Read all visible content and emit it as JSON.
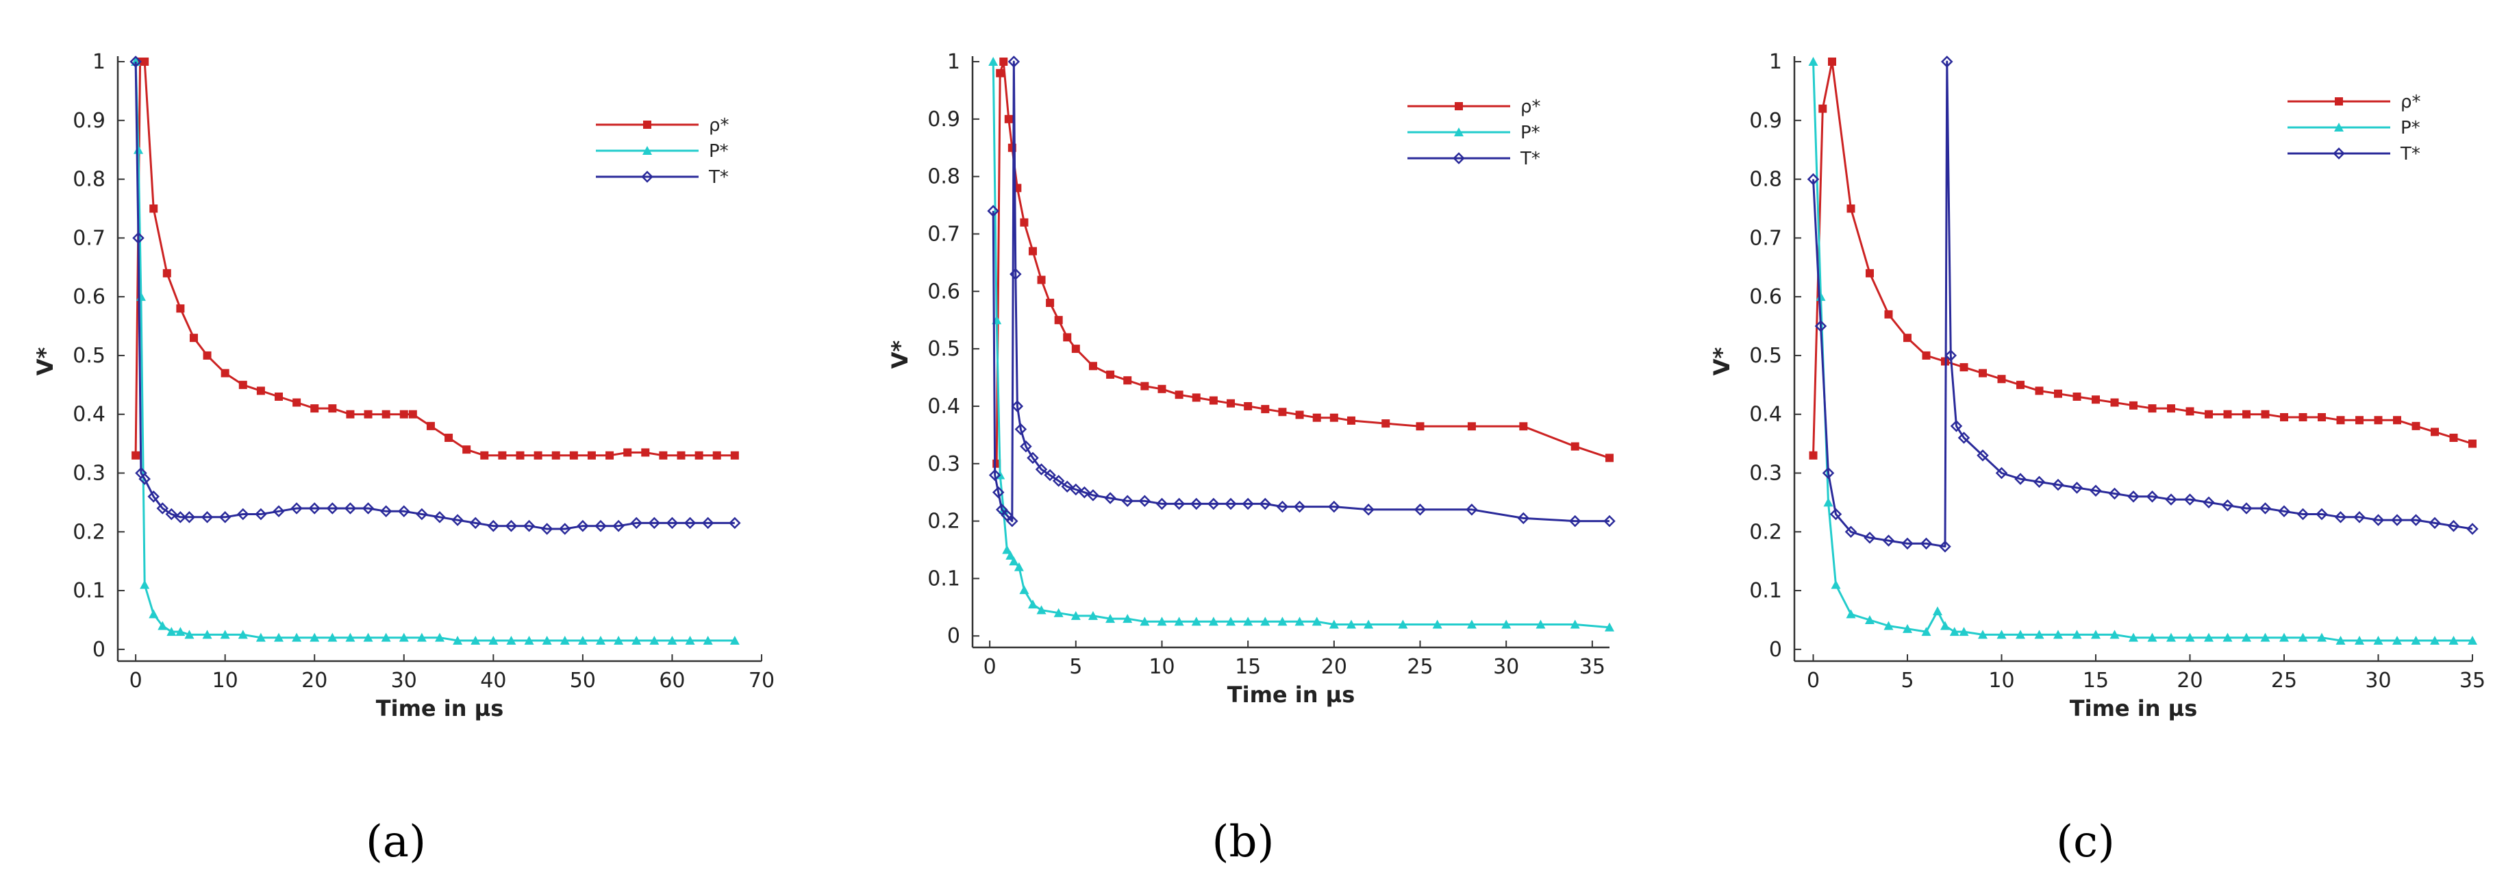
{
  "chart_data": [
    {
      "type": "line",
      "panel_label": "(a)",
      "xlabel": "Time in µs",
      "ylabel": "V*",
      "xlim": [
        -2,
        70
      ],
      "ylim": [
        -0.02,
        1.0
      ],
      "xticks": [
        "0",
        "10",
        "20",
        "30",
        "40",
        "50",
        "60",
        "70"
      ],
      "yticks": [
        "0",
        "0.1",
        "0.2",
        "0.3",
        "0.4",
        "0.5",
        "0.6",
        "0.7",
        "0.8",
        "0.9",
        "1"
      ],
      "legend_position": "top-right",
      "grid": false,
      "series": [
        {
          "name": "ρ*",
          "color": "#cc2222",
          "marker": "square",
          "x": [
            0,
            0.5,
            1,
            2,
            3.5,
            5,
            6.5,
            8,
            10,
            12,
            14,
            16,
            18,
            20,
            22,
            24,
            26,
            28,
            30,
            31,
            33,
            35,
            37,
            39,
            41,
            43,
            45,
            47,
            49,
            51,
            53,
            55,
            57,
            59,
            61,
            63,
            65,
            67
          ],
          "y": [
            0.33,
            1.0,
            1.0,
            0.75,
            0.64,
            0.58,
            0.53,
            0.5,
            0.47,
            0.45,
            0.44,
            0.43,
            0.42,
            0.41,
            0.41,
            0.4,
            0.4,
            0.4,
            0.4,
            0.4,
            0.38,
            0.36,
            0.34,
            0.33,
            0.33,
            0.33,
            0.33,
            0.33,
            0.33,
            0.33,
            0.33,
            0.335,
            0.335,
            0.33,
            0.33,
            0.33,
            0.33,
            0.33
          ]
        },
        {
          "name": "P*",
          "color": "#22cccc",
          "marker": "triangle",
          "x": [
            0,
            0.3,
            0.6,
            1,
            2,
            3,
            4,
            5,
            6,
            8,
            10,
            12,
            14,
            16,
            18,
            20,
            22,
            24,
            26,
            28,
            30,
            32,
            34,
            36,
            38,
            40,
            42,
            44,
            46,
            48,
            50,
            52,
            54,
            56,
            58,
            60,
            62,
            64,
            67
          ],
          "y": [
            1.0,
            0.85,
            0.6,
            0.11,
            0.06,
            0.04,
            0.03,
            0.03,
            0.025,
            0.025,
            0.025,
            0.025,
            0.02,
            0.02,
            0.02,
            0.02,
            0.02,
            0.02,
            0.02,
            0.02,
            0.02,
            0.02,
            0.02,
            0.015,
            0.015,
            0.015,
            0.015,
            0.015,
            0.015,
            0.015,
            0.015,
            0.015,
            0.015,
            0.015,
            0.015,
            0.015,
            0.015,
            0.015,
            0.015
          ]
        },
        {
          "name": "T*",
          "color": "#2a2a9a",
          "marker": "diamond",
          "x": [
            0,
            0.3,
            0.6,
            1,
            2,
            3,
            4,
            5,
            6,
            8,
            10,
            12,
            14,
            16,
            18,
            20,
            22,
            24,
            26,
            28,
            30,
            32,
            34,
            36,
            38,
            40,
            42,
            44,
            46,
            48,
            50,
            52,
            54,
            56,
            58,
            60,
            62,
            64,
            67
          ],
          "y": [
            1.0,
            0.7,
            0.3,
            0.29,
            0.26,
            0.24,
            0.23,
            0.225,
            0.225,
            0.225,
            0.225,
            0.23,
            0.23,
            0.235,
            0.24,
            0.24,
            0.24,
            0.24,
            0.24,
            0.235,
            0.235,
            0.23,
            0.225,
            0.22,
            0.215,
            0.21,
            0.21,
            0.21,
            0.205,
            0.205,
            0.21,
            0.21,
            0.21,
            0.215,
            0.215,
            0.215,
            0.215,
            0.215,
            0.215
          ]
        }
      ]
    },
    {
      "type": "line",
      "panel_label": "(b)",
      "xlabel": "Time in µs",
      "ylabel": "V*",
      "xlim": [
        -1,
        36
      ],
      "ylim": [
        -0.02,
        1.0
      ],
      "xticks": [
        "0",
        "5",
        "10",
        "15",
        "20",
        "25",
        "30",
        "35"
      ],
      "yticks": [
        "0",
        "0.1",
        "0.2",
        "0.3",
        "0.4",
        "0.5",
        "0.6",
        "0.7",
        "0.8",
        "0.9",
        "1"
      ],
      "legend_position": "top-right",
      "grid": false,
      "series": [
        {
          "name": "ρ*",
          "color": "#cc2222",
          "marker": "square",
          "x": [
            0.4,
            0.6,
            0.8,
            1.1,
            1.3,
            1.6,
            2,
            2.5,
            3,
            3.5,
            4,
            4.5,
            5,
            6,
            7,
            8,
            9,
            10,
            11,
            12,
            13,
            14,
            15,
            16,
            17,
            18,
            19,
            20,
            21,
            23,
            25,
            28,
            31,
            34,
            36
          ],
          "y": [
            0.3,
            0.98,
            1.0,
            0.9,
            0.85,
            0.78,
            0.72,
            0.67,
            0.62,
            0.58,
            0.55,
            0.52,
            0.5,
            0.47,
            0.455,
            0.445,
            0.435,
            0.43,
            0.42,
            0.415,
            0.41,
            0.405,
            0.4,
            0.395,
            0.39,
            0.385,
            0.38,
            0.38,
            0.375,
            0.37,
            0.365,
            0.365,
            0.365,
            0.33,
            0.31
          ]
        },
        {
          "name": "P*",
          "color": "#22cccc",
          "marker": "triangle",
          "x": [
            0.2,
            0.4,
            0.6,
            0.8,
            1.0,
            1.2,
            1.4,
            1.7,
            2,
            2.5,
            3,
            4,
            5,
            6,
            7,
            8,
            9,
            10,
            11,
            12,
            13,
            14,
            15,
            16,
            17,
            18,
            19,
            20,
            21,
            22,
            24,
            26,
            28,
            30,
            32,
            34,
            36
          ],
          "y": [
            1.0,
            0.55,
            0.28,
            0.22,
            0.15,
            0.14,
            0.13,
            0.12,
            0.08,
            0.055,
            0.045,
            0.04,
            0.035,
            0.035,
            0.03,
            0.03,
            0.025,
            0.025,
            0.025,
            0.025,
            0.025,
            0.025,
            0.025,
            0.025,
            0.025,
            0.025,
            0.025,
            0.02,
            0.02,
            0.02,
            0.02,
            0.02,
            0.02,
            0.02,
            0.02,
            0.02,
            0.015
          ]
        },
        {
          "name": "T*",
          "color": "#2a2a9a",
          "marker": "diamond",
          "x": [
            0.2,
            0.3,
            0.5,
            0.7,
            1.0,
            1.3,
            1.4,
            1.5,
            1.6,
            1.8,
            2.1,
            2.5,
            3,
            3.5,
            4,
            4.5,
            5,
            5.5,
            6,
            7,
            8,
            9,
            10,
            11,
            12,
            13,
            14,
            15,
            16,
            17,
            18,
            20,
            22,
            25,
            28,
            31,
            34,
            36
          ],
          "y": [
            0.74,
            0.28,
            0.25,
            0.22,
            0.21,
            0.2,
            1.0,
            0.63,
            0.4,
            0.36,
            0.33,
            0.31,
            0.29,
            0.28,
            0.27,
            0.26,
            0.255,
            0.25,
            0.245,
            0.24,
            0.235,
            0.235,
            0.23,
            0.23,
            0.23,
            0.23,
            0.23,
            0.23,
            0.23,
            0.225,
            0.225,
            0.225,
            0.22,
            0.22,
            0.22,
            0.205,
            0.2,
            0.2
          ]
        }
      ]
    },
    {
      "type": "line",
      "panel_label": "(c)",
      "xlabel": "Time in µs",
      "ylabel": "V*",
      "xlim": [
        -1,
        35
      ],
      "ylim": [
        -0.02,
        1.0
      ],
      "xticks": [
        "0",
        "5",
        "10",
        "15",
        "20",
        "25",
        "30",
        "35"
      ],
      "yticks": [
        "0",
        "0.1",
        "0.2",
        "0.3",
        "0.4",
        "0.5",
        "0.6",
        "0.7",
        "0.8",
        "0.9",
        "1"
      ],
      "legend_position": "top-right",
      "grid": false,
      "series": [
        {
          "name": "ρ*",
          "color": "#cc2222",
          "marker": "square",
          "x": [
            0,
            0.5,
            1,
            2,
            3,
            4,
            5,
            6,
            7,
            8,
            9,
            10,
            11,
            12,
            13,
            14,
            15,
            16,
            17,
            18,
            19,
            20,
            21,
            22,
            23,
            24,
            25,
            26,
            27,
            28,
            29,
            30,
            31,
            32,
            33,
            34,
            35
          ],
          "y": [
            0.33,
            0.92,
            1.0,
            0.75,
            0.64,
            0.57,
            0.53,
            0.5,
            0.49,
            0.48,
            0.47,
            0.46,
            0.45,
            0.44,
            0.435,
            0.43,
            0.425,
            0.42,
            0.415,
            0.41,
            0.41,
            0.405,
            0.4,
            0.4,
            0.4,
            0.4,
            0.395,
            0.395,
            0.395,
            0.39,
            0.39,
            0.39,
            0.39,
            0.38,
            0.37,
            0.36,
            0.35
          ]
        },
        {
          "name": "P*",
          "color": "#22cccc",
          "marker": "triangle",
          "x": [
            0,
            0.4,
            0.8,
            1.2,
            2,
            3,
            4,
            5,
            6,
            6.6,
            7,
            7.5,
            8,
            9,
            10,
            11,
            12,
            13,
            14,
            15,
            16,
            17,
            18,
            19,
            20,
            21,
            22,
            23,
            24,
            25,
            26,
            27,
            28,
            29,
            30,
            31,
            32,
            33,
            34,
            35
          ],
          "y": [
            1.0,
            0.6,
            0.25,
            0.11,
            0.06,
            0.05,
            0.04,
            0.035,
            0.03,
            0.065,
            0.04,
            0.03,
            0.03,
            0.025,
            0.025,
            0.025,
            0.025,
            0.025,
            0.025,
            0.025,
            0.025,
            0.02,
            0.02,
            0.02,
            0.02,
            0.02,
            0.02,
            0.02,
            0.02,
            0.02,
            0.02,
            0.02,
            0.015,
            0.015,
            0.015,
            0.015,
            0.015,
            0.015,
            0.015,
            0.015
          ]
        },
        {
          "name": "T*",
          "color": "#2a2a9a",
          "marker": "diamond",
          "x": [
            0,
            0.4,
            0.8,
            1.2,
            2,
            3,
            4,
            5,
            6,
            7,
            7.1,
            7.3,
            7.6,
            8,
            9,
            10,
            11,
            12,
            13,
            14,
            15,
            16,
            17,
            18,
            19,
            20,
            21,
            22,
            23,
            24,
            25,
            26,
            27,
            28,
            29,
            30,
            31,
            32,
            33,
            34,
            35
          ],
          "y": [
            0.8,
            0.55,
            0.3,
            0.23,
            0.2,
            0.19,
            0.185,
            0.18,
            0.18,
            0.175,
            1.0,
            0.5,
            0.38,
            0.36,
            0.33,
            0.3,
            0.29,
            0.285,
            0.28,
            0.275,
            0.27,
            0.265,
            0.26,
            0.26,
            0.255,
            0.255,
            0.25,
            0.245,
            0.24,
            0.24,
            0.235,
            0.23,
            0.23,
            0.225,
            0.225,
            0.22,
            0.22,
            0.22,
            0.215,
            0.21,
            0.205
          ]
        }
      ]
    }
  ]
}
